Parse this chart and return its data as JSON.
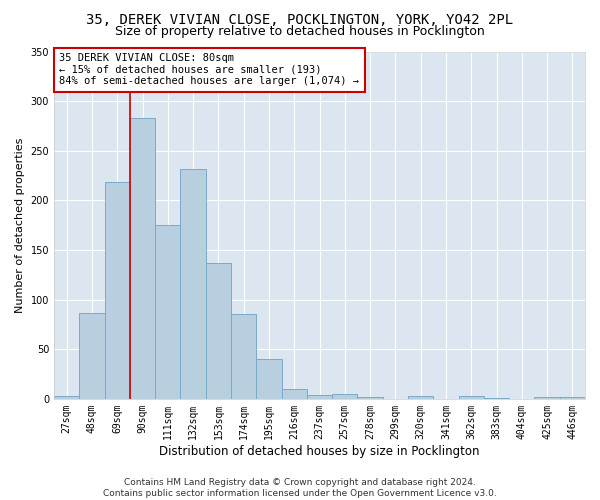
{
  "title": "35, DEREK VIVIAN CLOSE, POCKLINGTON, YORK, YO42 2PL",
  "subtitle": "Size of property relative to detached houses in Pocklington",
  "xlabel": "Distribution of detached houses by size in Pocklington",
  "ylabel": "Number of detached properties",
  "categories": [
    "27sqm",
    "48sqm",
    "69sqm",
    "90sqm",
    "111sqm",
    "132sqm",
    "153sqm",
    "174sqm",
    "195sqm",
    "216sqm",
    "237sqm",
    "257sqm",
    "278sqm",
    "299sqm",
    "320sqm",
    "341sqm",
    "362sqm",
    "383sqm",
    "404sqm",
    "425sqm",
    "446sqm"
  ],
  "values": [
    3,
    86,
    219,
    283,
    175,
    232,
    137,
    85,
    40,
    10,
    4,
    5,
    2,
    0,
    3,
    0,
    3,
    1,
    0,
    2,
    2
  ],
  "bar_color": "#b8cfe0",
  "bar_edge_color": "#7aaac8",
  "bar_linewidth": 0.7,
  "vline_color": "#cc0000",
  "vline_linewidth": 1.2,
  "vline_position": 2.5,
  "annotation_text": "35 DEREK VIVIAN CLOSE: 80sqm\n← 15% of detached houses are smaller (193)\n84% of semi-detached houses are larger (1,074) →",
  "annotation_box_color": "#ffffff",
  "annotation_box_edge_color": "#cc0000",
  "ylim": [
    0,
    350
  ],
  "yticks": [
    0,
    50,
    100,
    150,
    200,
    250,
    300,
    350
  ],
  "background_color": "#dce6f0",
  "grid_color": "#ffffff",
  "figure_bg": "#ffffff",
  "footer_line1": "Contains HM Land Registry data © Crown copyright and database right 2024.",
  "footer_line2": "Contains public sector information licensed under the Open Government Licence v3.0.",
  "title_fontsize": 10,
  "subtitle_fontsize": 9,
  "xlabel_fontsize": 8.5,
  "ylabel_fontsize": 8,
  "tick_fontsize": 7,
  "annotation_fontsize": 7.5,
  "footer_fontsize": 6.5
}
